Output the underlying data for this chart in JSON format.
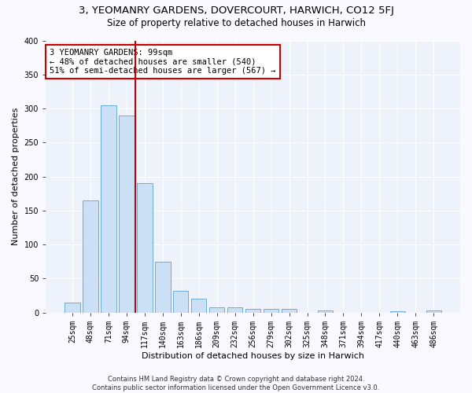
{
  "title": "3, YEOMANRY GARDENS, DOVERCOURT, HARWICH, CO12 5FJ",
  "subtitle": "Size of property relative to detached houses in Harwich",
  "xlabel": "Distribution of detached houses by size in Harwich",
  "ylabel": "Number of detached properties",
  "categories": [
    "25sqm",
    "48sqm",
    "71sqm",
    "94sqm",
    "117sqm",
    "140sqm",
    "163sqm",
    "186sqm",
    "209sqm",
    "232sqm",
    "256sqm",
    "279sqm",
    "302sqm",
    "325sqm",
    "348sqm",
    "371sqm",
    "394sqm",
    "417sqm",
    "440sqm",
    "463sqm",
    "486sqm"
  ],
  "values": [
    15,
    165,
    305,
    290,
    190,
    75,
    32,
    20,
    8,
    8,
    5,
    5,
    5,
    0,
    3,
    0,
    0,
    0,
    2,
    0,
    3
  ],
  "bar_color": "#cce0f5",
  "bar_edge_color": "#6aaed6",
  "vline_x_index": 3.5,
  "vline_color": "#cc0000",
  "annotation_text": "3 YEOMANRY GARDENS: 99sqm\n← 48% of detached houses are smaller (540)\n51% of semi-detached houses are larger (567) →",
  "annotation_box_facecolor": "#ffffff",
  "annotation_box_edgecolor": "#cc0000",
  "ylim": [
    0,
    400
  ],
  "yticks": [
    0,
    50,
    100,
    150,
    200,
    250,
    300,
    350,
    400
  ],
  "footer": "Contains HM Land Registry data © Crown copyright and database right 2024.\nContains public sector information licensed under the Open Government Licence v3.0.",
  "fig_facecolor": "#f9f9ff",
  "ax_facecolor": "#edf2fb",
  "grid_color": "#ffffff",
  "title_fontsize": 9.5,
  "subtitle_fontsize": 8.5,
  "tick_fontsize": 7,
  "ylabel_fontsize": 8,
  "xlabel_fontsize": 8,
  "footer_fontsize": 6,
  "annotation_fontsize": 7.5
}
